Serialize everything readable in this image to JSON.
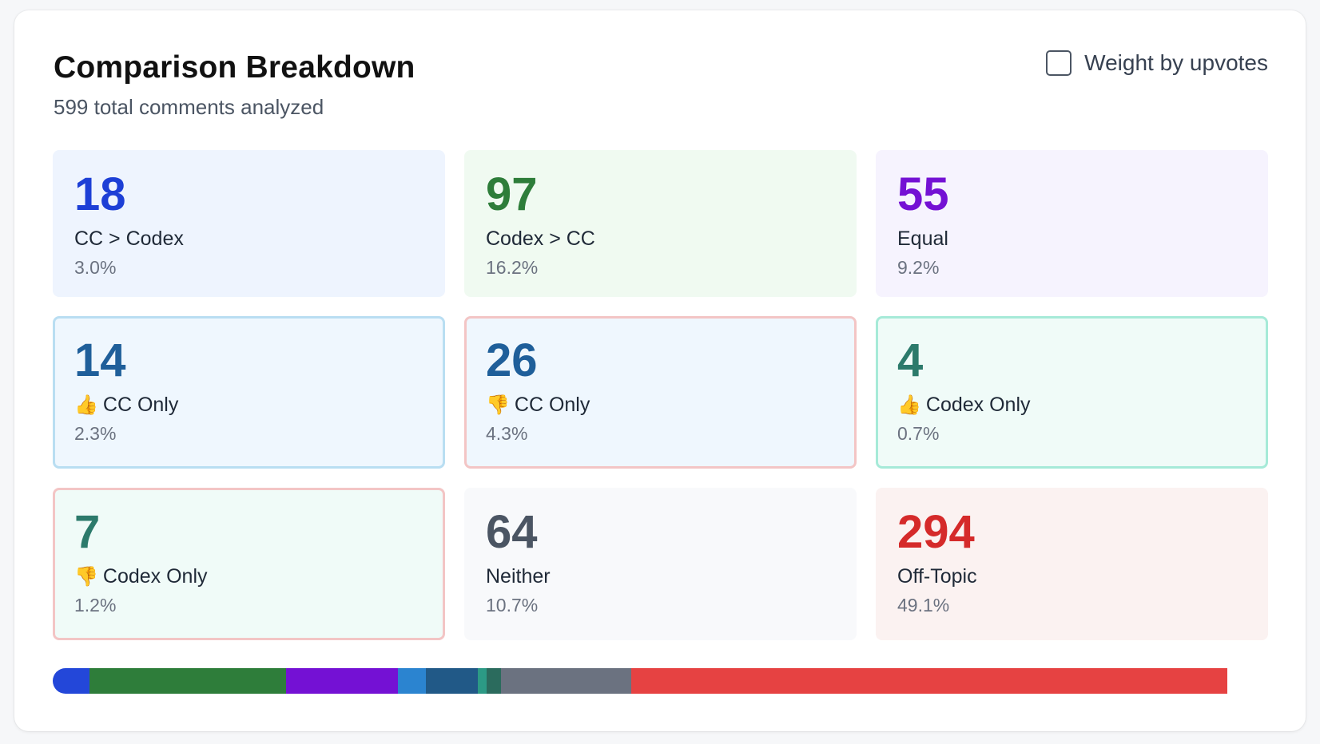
{
  "header": {
    "title": "Comparison Breakdown",
    "subtitle": "599 total comments analyzed",
    "toggle_label": "Weight by upvotes",
    "toggle_checked": false
  },
  "stats": [
    {
      "value": "18",
      "label": "CC > Codex",
      "pct": "3.0%",
      "icon": "",
      "color": "#1d3fd6",
      "bg": "#eef4fe",
      "border": ""
    },
    {
      "value": "97",
      "label": "Codex > CC",
      "pct": "16.2%",
      "icon": "",
      "color": "#2e7d3a",
      "bg": "#f0faf1",
      "border": ""
    },
    {
      "value": "55",
      "label": "Equal",
      "pct": "9.2%",
      "icon": "",
      "color": "#7411d4",
      "bg": "#f6f3fe",
      "border": ""
    },
    {
      "value": "14",
      "label": "CC Only",
      "pct": "2.3%",
      "icon": "thumbs-up-icon",
      "color": "#1f5f9a",
      "bg": "#eff7fe",
      "border": "#b9def2"
    },
    {
      "value": "26",
      "label": "CC Only",
      "pct": "4.3%",
      "icon": "thumbs-down-icon",
      "color": "#1f5f9a",
      "bg": "#eff7fe",
      "border": "#f3c5c5"
    },
    {
      "value": "4",
      "label": "Codex Only",
      "pct": "0.7%",
      "icon": "thumbs-up-icon",
      "color": "#2c7a6b",
      "bg": "#f0fbf8",
      "border": "#a6ead8"
    },
    {
      "value": "7",
      "label": "Codex Only",
      "pct": "1.2%",
      "icon": "thumbs-down-icon",
      "color": "#2c7a6b",
      "bg": "#f0fbf8",
      "border": "#f3c5c5"
    },
    {
      "value": "64",
      "label": "Neither",
      "pct": "10.7%",
      "icon": "",
      "color": "#4b5563",
      "bg": "#f8f9fb",
      "border": ""
    },
    {
      "value": "294",
      "label": "Off-Topic",
      "pct": "49.1%",
      "icon": "",
      "color": "#d52a2a",
      "bg": "#fbf2f1",
      "border": ""
    }
  ],
  "distribution_bar": [
    {
      "name": "CC > Codex",
      "share": 0.03,
      "color": "#2347d9"
    },
    {
      "name": "Codex > CC",
      "share": 0.162,
      "color": "#2e7d3a"
    },
    {
      "name": "Equal",
      "share": 0.092,
      "color": "#7411d4"
    },
    {
      "name": "thumbs-up CC Only",
      "share": 0.023,
      "color": "#2b84d0"
    },
    {
      "name": "thumbs-down CC Only",
      "share": 0.043,
      "color": "#215987"
    },
    {
      "name": "thumbs-up Codex Only",
      "share": 0.007,
      "color": "#2c9a85"
    },
    {
      "name": "thumbs-down Codex Only",
      "share": 0.012,
      "color": "#2b6b5d"
    },
    {
      "name": "Neither",
      "share": 0.107,
      "color": "#6b7280"
    },
    {
      "name": "Off-Topic",
      "share": 0.491,
      "color": "#e64242"
    }
  ]
}
